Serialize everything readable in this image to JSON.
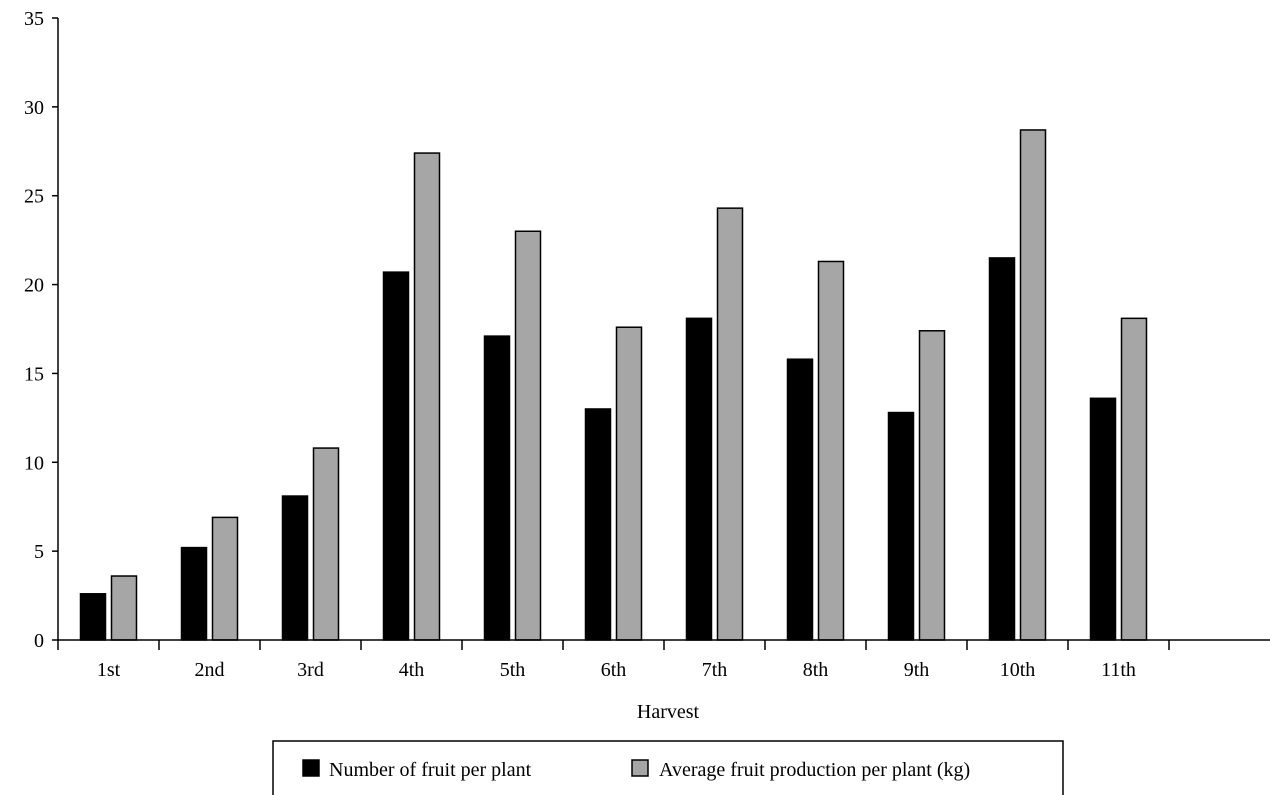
{
  "chart_data": {
    "type": "bar",
    "title": "",
    "xlabel": "Harvest",
    "ylabel": "",
    "ylim": [
      0,
      35
    ],
    "yticks": [
      0,
      5,
      10,
      15,
      20,
      25,
      30,
      35
    ],
    "grid": false,
    "legend_position": "bottom",
    "categories": [
      "1st",
      "2nd",
      "3rd",
      "4th",
      "5th",
      "6th",
      "7th",
      "8th",
      "9th",
      "10th",
      "11th"
    ],
    "series": [
      {
        "name": "Number of fruit per plant",
        "color": "#000000",
        "values": [
          2.6,
          5.2,
          8.1,
          20.7,
          17.1,
          13.0,
          18.1,
          15.8,
          12.8,
          21.5,
          13.6
        ]
      },
      {
        "name": "Average fruit production per plant (kg)",
        "color": "#a6a6a6",
        "values": [
          3.6,
          6.9,
          10.8,
          27.4,
          23.0,
          17.6,
          24.3,
          21.3,
          17.4,
          28.7,
          18.1
        ]
      }
    ]
  }
}
